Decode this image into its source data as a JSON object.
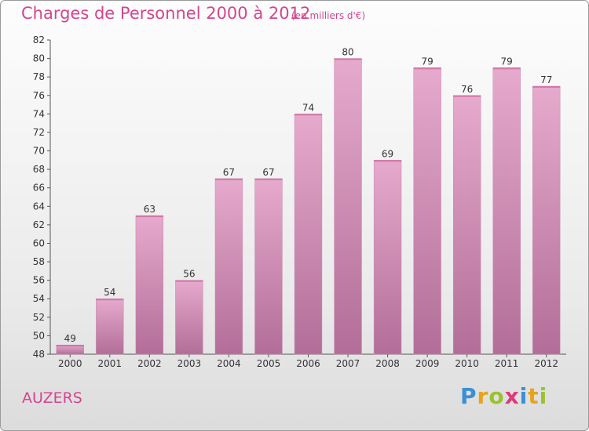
{
  "header": {
    "title": "Charges de Personnel 2000 à 2012",
    "subtitle": "(en milliers d'€)"
  },
  "footer": {
    "place": "AUZERS",
    "logo_letters": [
      "P",
      "r",
      "o",
      "x",
      "i",
      "t",
      "i"
    ],
    "logo_colors": [
      "#3a8fd6",
      "#e8a31c",
      "#9ac22e",
      "#e0397a",
      "#3a8fd6",
      "#e8a31c",
      "#9ac22e"
    ]
  },
  "colors": {
    "bar_top": "#e6aacd",
    "bar_bottom": "#b26e98",
    "accent": "#d4458e"
  },
  "chart_data": {
    "type": "bar",
    "categories": [
      "2000",
      "2001",
      "2002",
      "2003",
      "2004",
      "2005",
      "2006",
      "2007",
      "2008",
      "2009",
      "2010",
      "2011",
      "2012"
    ],
    "values": [
      49,
      54,
      63,
      56,
      67,
      67,
      74,
      80,
      69,
      79,
      76,
      79,
      77
    ],
    "title": "Charges de Personnel 2000 à 2012",
    "xlabel": "",
    "ylabel": "",
    "ylim": [
      48,
      82
    ],
    "yticks": [
      48,
      50,
      52,
      54,
      56,
      58,
      60,
      62,
      64,
      66,
      68,
      70,
      72,
      74,
      76,
      78,
      80,
      82
    ],
    "grid": false,
    "legend": "none"
  }
}
